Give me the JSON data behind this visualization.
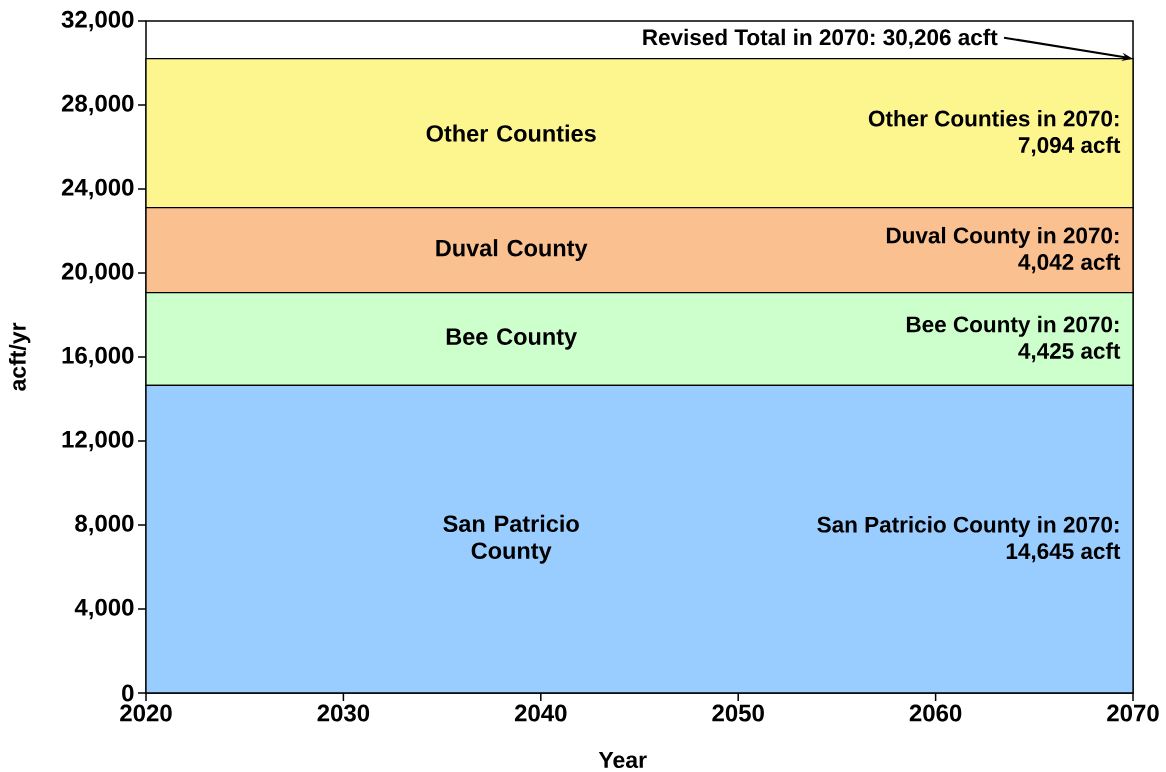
{
  "chart_data": {
    "type": "area",
    "stacked": true,
    "xlabel": "Year",
    "ylabel": "acft/yr",
    "x": [
      2020,
      2070
    ],
    "series": [
      {
        "name": "San Patricio County",
        "color": "#99ccff",
        "values": [
          14645,
          14645
        ]
      },
      {
        "name": "Bee County",
        "color": "#ccffcc",
        "values": [
          4425,
          4425
        ]
      },
      {
        "name": "Duval County",
        "color": "#fac090",
        "values": [
          4042,
          4042
        ]
      },
      {
        "name": "Other Counties",
        "color": "#fdf68f",
        "values": [
          7094,
          7094
        ]
      }
    ],
    "xlim": [
      2020,
      2070
    ],
    "xticks": [
      2020,
      2030,
      2040,
      2050,
      2060,
      2070
    ],
    "ylim": [
      0,
      32000
    ],
    "yticks": [
      0,
      {
        "value": 4000,
        "label": "4,000"
      },
      {
        "value": 8000,
        "label": "8,000"
      },
      {
        "value": 12000,
        "label": "12,000"
      },
      {
        "value": 16000,
        "label": "16,000"
      },
      {
        "value": 20000,
        "label": "20,000"
      },
      {
        "value": 24000,
        "label": "24,000"
      },
      {
        "value": 28000,
        "label": "28,000"
      },
      {
        "value": 32000,
        "label": "32,000"
      }
    ],
    "annotations": [
      {
        "text": "Revised Total in 2070: 30,206 acft",
        "x": 2070,
        "y": 30206
      },
      "Other Counties in 2070: 7,094 acft",
      "Duval County in 2070: 4,042 acft",
      "Bee County in 2070: 4,425 acft",
      "San Patricio County in 2070: 14,645 acft"
    ]
  }
}
